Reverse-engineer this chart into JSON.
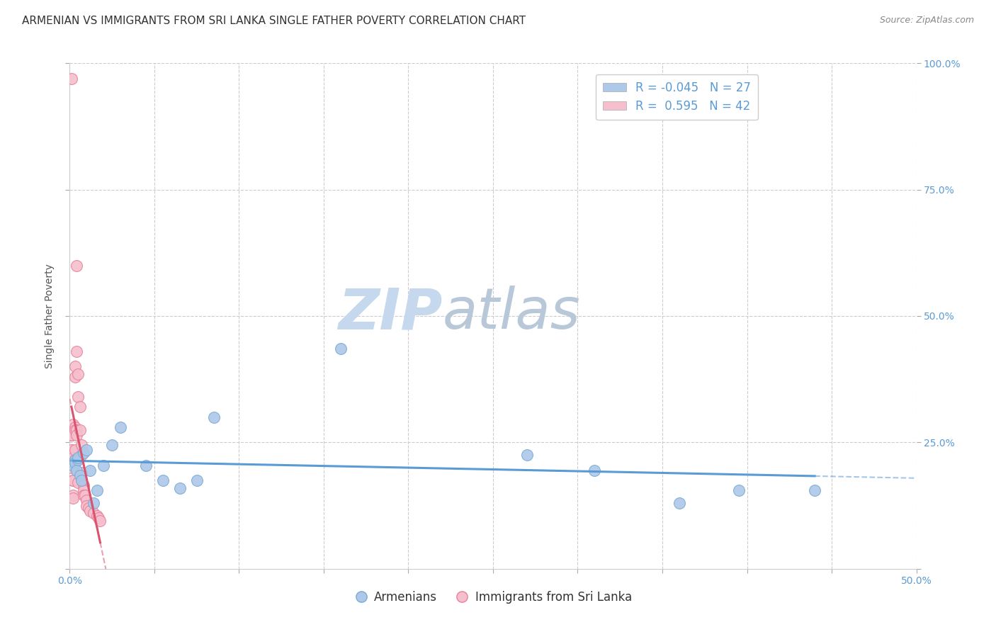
{
  "title": "ARMENIAN VS IMMIGRANTS FROM SRI LANKA SINGLE FATHER POVERTY CORRELATION CHART",
  "source": "Source: ZipAtlas.com",
  "ylabel": "Single Father Poverty",
  "xlim": [
    0.0,
    0.5
  ],
  "ylim": [
    0.0,
    1.0
  ],
  "xticks": [
    0.0,
    0.05,
    0.1,
    0.15,
    0.2,
    0.25,
    0.3,
    0.35,
    0.4,
    0.45,
    0.5
  ],
  "xtick_labels": [
    "0.0%",
    "",
    "",
    "",
    "",
    "",
    "",
    "",
    "",
    "",
    "50.0%"
  ],
  "yticks": [
    0.0,
    0.25,
    0.5,
    0.75,
    1.0
  ],
  "ytick_labels_right": [
    "",
    "25.0%",
    "50.0%",
    "75.0%",
    "100.0%"
  ],
  "armenians_x": [
    0.002,
    0.003,
    0.003,
    0.004,
    0.005,
    0.005,
    0.006,
    0.007,
    0.008,
    0.01,
    0.012,
    0.014,
    0.016,
    0.02,
    0.025,
    0.03,
    0.045,
    0.055,
    0.065,
    0.075,
    0.085,
    0.16,
    0.27,
    0.31,
    0.36,
    0.395,
    0.44
  ],
  "armenians_y": [
    0.205,
    0.215,
    0.21,
    0.195,
    0.215,
    0.22,
    0.185,
    0.175,
    0.23,
    0.235,
    0.195,
    0.13,
    0.155,
    0.205,
    0.245,
    0.28,
    0.205,
    0.175,
    0.16,
    0.175,
    0.3,
    0.435,
    0.225,
    0.195,
    0.13,
    0.155,
    0.155
  ],
  "srilanka_x": [
    0.001,
    0.001,
    0.001,
    0.001,
    0.001,
    0.002,
    0.002,
    0.002,
    0.002,
    0.002,
    0.002,
    0.002,
    0.003,
    0.003,
    0.003,
    0.003,
    0.003,
    0.003,
    0.004,
    0.004,
    0.004,
    0.004,
    0.005,
    0.005,
    0.005,
    0.006,
    0.006,
    0.007,
    0.007,
    0.007,
    0.008,
    0.008,
    0.008,
    0.009,
    0.01,
    0.01,
    0.011,
    0.012,
    0.014,
    0.016,
    0.017,
    0.018
  ],
  "srilanka_y": [
    0.97,
    0.265,
    0.265,
    0.235,
    0.2,
    0.285,
    0.22,
    0.21,
    0.175,
    0.175,
    0.145,
    0.14,
    0.4,
    0.38,
    0.28,
    0.275,
    0.235,
    0.215,
    0.6,
    0.43,
    0.275,
    0.265,
    0.385,
    0.34,
    0.17,
    0.32,
    0.275,
    0.245,
    0.225,
    0.19,
    0.165,
    0.155,
    0.145,
    0.145,
    0.135,
    0.125,
    0.12,
    0.115,
    0.11,
    0.105,
    0.1,
    0.095
  ],
  "armenians_R": -0.045,
  "armenians_N": 27,
  "srilanka_R": 0.595,
  "srilanka_N": 42,
  "armenians_color": "#adc8e8",
  "armenians_edge_color": "#7aaad4",
  "srilanka_color": "#f5bfce",
  "srilanka_edge_color": "#e8809a",
  "trend_armenians_color": "#5b9bd5",
  "trend_srilanka_color": "#d9536e",
  "watermark_zip_color": "#c5d8ed",
  "watermark_atlas_color": "#b8c8d8",
  "background_color": "#ffffff",
  "grid_color": "#cccccc",
  "title_fontsize": 11,
  "axis_label_fontsize": 10,
  "tick_fontsize": 10,
  "legend_fontsize": 12
}
